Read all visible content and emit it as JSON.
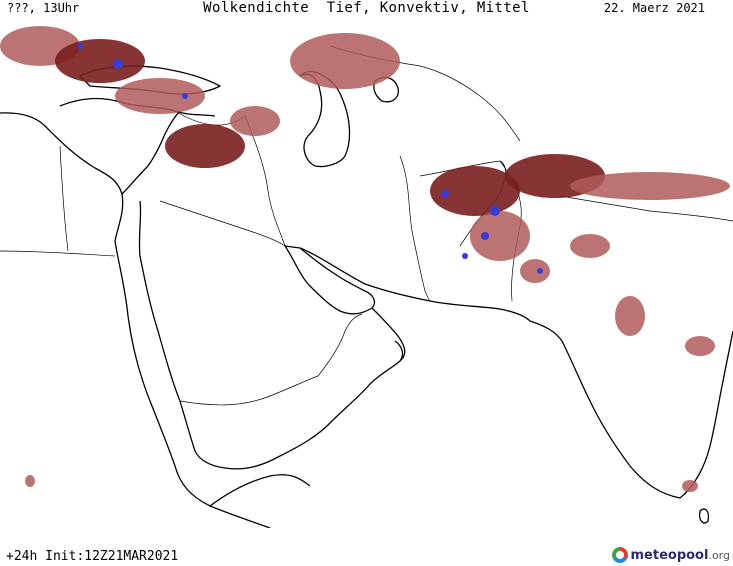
{
  "header": {
    "left": "???, 13Uhr",
    "center": "Wolkendichte  Tief, Konvektiv, Mittel",
    "right": "22. Maerz 2021"
  },
  "footer": {
    "run_info": "+24h Init:12Z21MAR2021",
    "brand": "meteopool",
    "brand_suffix": ".org"
  },
  "colors": {
    "cloud_low": "#b05a5a",
    "cloud_dense": "#7a1e1e",
    "convective": "#3b3bd6",
    "coastline": "#000000",
    "background": "#ffffff"
  },
  "map": {
    "layers": [
      "coastline",
      "country-borders",
      "cloud-density",
      "convective-cells"
    ]
  }
}
